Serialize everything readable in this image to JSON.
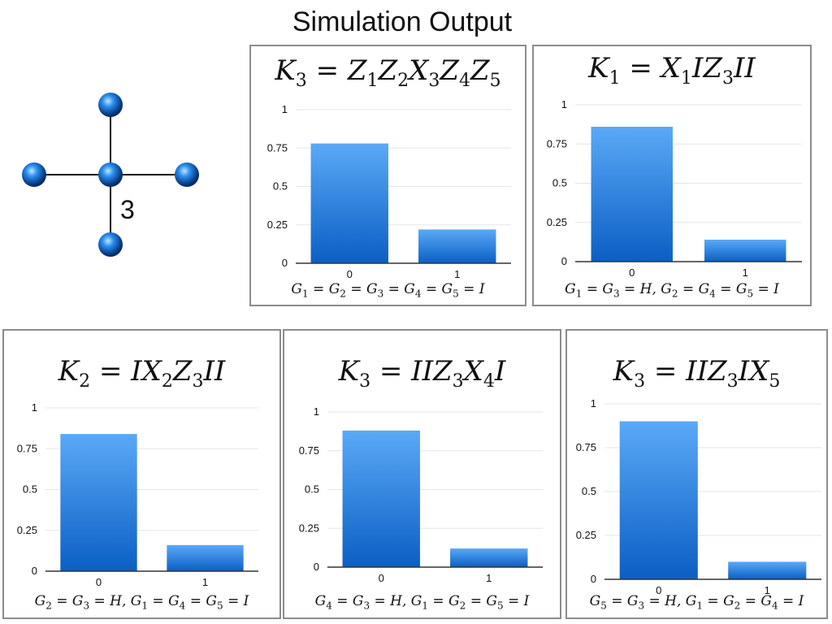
{
  "title": "Simulation Output",
  "graph": {
    "center_label": "3"
  },
  "colors": {
    "bar_top": "#5aa9f7",
    "bar_bottom": "#0b5fc4",
    "grid": "#e6e6e6",
    "axis": "#333333"
  },
  "chart_data": [
    {
      "type": "bar",
      "title": "K3 = Z1Z2X3Z4Z5",
      "categories": [
        "0",
        "1"
      ],
      "values": [
        0.78,
        0.22
      ],
      "ylim": [
        0,
        1
      ],
      "yticks": [
        "0",
        "0.25",
        "0.5",
        "0.75",
        "1"
      ],
      "caption": "G1 = G2 = G3 = G4 = G5 = I",
      "grid": true
    },
    {
      "type": "bar",
      "title": "K1 = X1IZ3II",
      "categories": [
        "0",
        "1"
      ],
      "values": [
        0.86,
        0.14
      ],
      "ylim": [
        0,
        1
      ],
      "yticks": [
        "0",
        "0.25",
        "0.5",
        "0.75",
        "1"
      ],
      "caption": "G1 = G3 = H, G2 = G4 = G5 = I",
      "grid": true
    },
    {
      "type": "bar",
      "title": "K2 = IX2Z3II",
      "categories": [
        "0",
        "1"
      ],
      "values": [
        0.84,
        0.16
      ],
      "ylim": [
        0,
        1
      ],
      "yticks": [
        "0",
        "0.25",
        "0.5",
        "0.75",
        "1"
      ],
      "caption": "G2 = G3 = H, G1 = G4 = G5 = I",
      "grid": true
    },
    {
      "type": "bar",
      "title": "K3 = IIZ3X4I",
      "categories": [
        "0",
        "1"
      ],
      "values": [
        0.88,
        0.12
      ],
      "ylim": [
        0,
        1
      ],
      "yticks": [
        "0",
        "0.25",
        "0.5",
        "0.75",
        "1"
      ],
      "caption": "G4 = G3 = H, G1 = G2 = G5 = I",
      "grid": true
    },
    {
      "type": "bar",
      "title": "K3 = IIZ3IX5",
      "categories": [
        "0",
        "1"
      ],
      "values": [
        0.9,
        0.1
      ],
      "ylim": [
        0,
        1
      ],
      "yticks": [
        "0",
        "0.25",
        "0.5",
        "0.75",
        "1"
      ],
      "caption": "G5 = G3 = H, G1 = G2 = G4 = I",
      "grid": true
    }
  ]
}
